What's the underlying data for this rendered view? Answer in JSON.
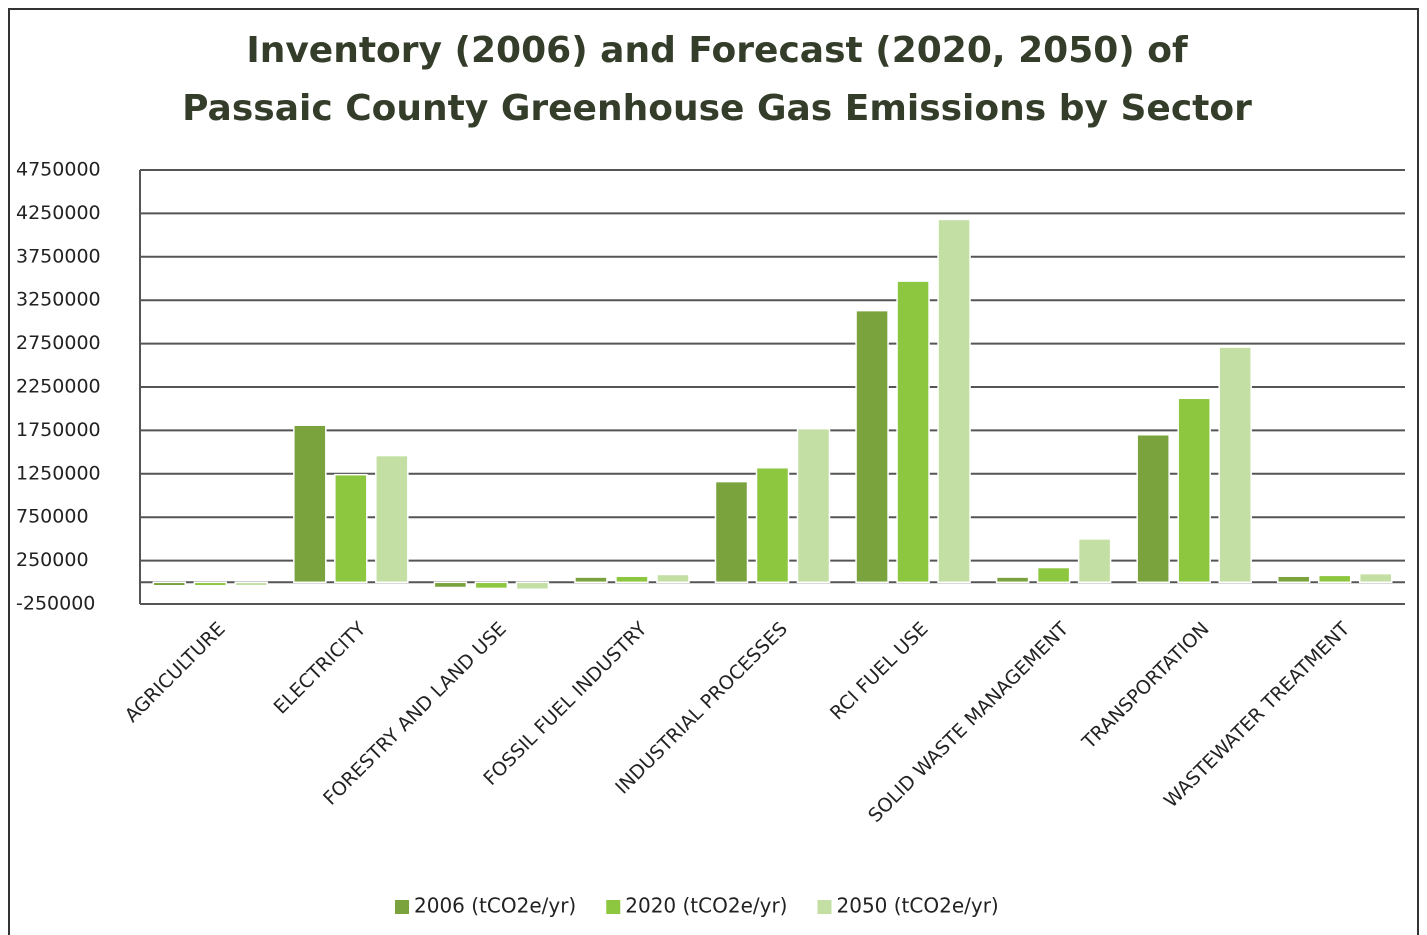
{
  "chart_data": {
    "type": "bar",
    "title": [
      "Inventory (2006) and Forecast (2020, 2050) of",
      "Passaic County Greenhouse Gas Emissions by Sector"
    ],
    "categories": [
      "AGRICULTURE",
      "ELECTRICITY",
      "FORESTRY AND LAND USE",
      "FOSSIL FUEL INDUSTRY",
      "INDUSTRIAL PROCESSES",
      "RCI FUEL USE",
      "SOLID WASTE MANAGEMENT",
      "TRANSPORTATION",
      "WASTEWATER TREATMENT"
    ],
    "series": [
      {
        "name": "2006 (tCO2e/yr)",
        "color": "#7aa33e",
        "values": [
          -40000,
          1810000,
          -60000,
          60000,
          1160000,
          3130000,
          60000,
          1700000,
          70000
        ]
      },
      {
        "name": "2020 (tCO2e/yr)",
        "color": "#8dc63f",
        "values": [
          -40000,
          1240000,
          -70000,
          70000,
          1320000,
          3470000,
          170000,
          2120000,
          80000
        ]
      },
      {
        "name": "2050 (tCO2e/yr)",
        "color": "#c3dfa3",
        "values": [
          -40000,
          1460000,
          -80000,
          90000,
          1770000,
          4180000,
          500000,
          2710000,
          100000
        ]
      }
    ],
    "ylim": [
      -250000,
      4750000
    ],
    "yticks": [
      -250000,
      250000,
      750000,
      1250000,
      1750000,
      2250000,
      2750000,
      3250000,
      3750000,
      4250000,
      4750000
    ],
    "grid": true,
    "legend": "bottom"
  }
}
